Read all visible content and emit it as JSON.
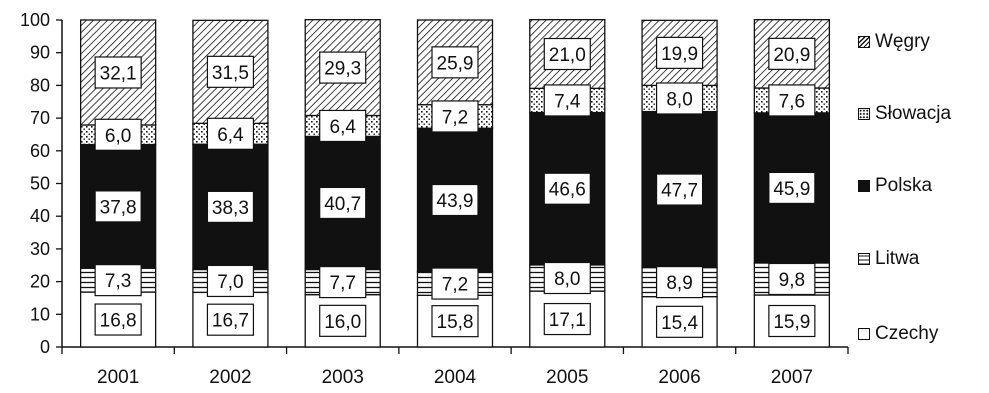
{
  "chart_data": {
    "type": "bar",
    "stacked": true,
    "categories": [
      "2001",
      "2002",
      "2003",
      "2004",
      "2005",
      "2006",
      "2007"
    ],
    "series": [
      {
        "name": "Czechy",
        "pattern": "blank",
        "values": [
          16.8,
          16.7,
          16.0,
          15.8,
          17.1,
          15.4,
          15.9
        ]
      },
      {
        "name": "Litwa",
        "pattern": "horizontal-lines",
        "values": [
          7.3,
          7.0,
          7.7,
          7.2,
          8.0,
          8.9,
          9.8
        ]
      },
      {
        "name": "Polska",
        "pattern": "solid",
        "values": [
          37.8,
          38.3,
          40.7,
          43.9,
          46.6,
          47.7,
          45.9
        ]
      },
      {
        "name": "Słowacja",
        "pattern": "dots",
        "values": [
          6.0,
          6.4,
          6.4,
          7.2,
          7.4,
          8.0,
          7.6
        ]
      },
      {
        "name": "Węgry",
        "pattern": "diagonal-hatch",
        "values": [
          32.1,
          31.5,
          29.3,
          25.9,
          21.0,
          19.9,
          20.9
        ]
      }
    ],
    "data_labels": [
      [
        "16,8",
        "16,7",
        "16,0",
        "15,8",
        "17,1",
        "15,4",
        "15,9"
      ],
      [
        "7,3",
        "7,0",
        "7,7",
        "7,2",
        "8,0",
        "8,9",
        "9,8"
      ],
      [
        "37,8",
        "38,3",
        "40,7",
        "43,9",
        "46,6",
        "47,7",
        "45,9"
      ],
      [
        "6,0",
        "6,4",
        "6,4",
        "7,2",
        "7,4",
        "8,0",
        "7,6"
      ],
      [
        "32,1",
        "31,5",
        "29,3",
        "25,9",
        "21,0",
        "19,9",
        "20,9"
      ]
    ],
    "y_ticks": [
      "0",
      "10",
      "20",
      "30",
      "40",
      "50",
      "60",
      "70",
      "80",
      "90",
      "100"
    ],
    "ylim": [
      0,
      100
    ],
    "grid": false,
    "legend_position": "right",
    "legend_order": [
      "Węgry",
      "Słowacja",
      "Polska",
      "Litwa",
      "Czechy"
    ],
    "title": "",
    "xlabel": "",
    "ylabel": "",
    "colors": {
      "ink": "#111111",
      "fill_solid": "#111111",
      "background": "#ffffff"
    }
  }
}
